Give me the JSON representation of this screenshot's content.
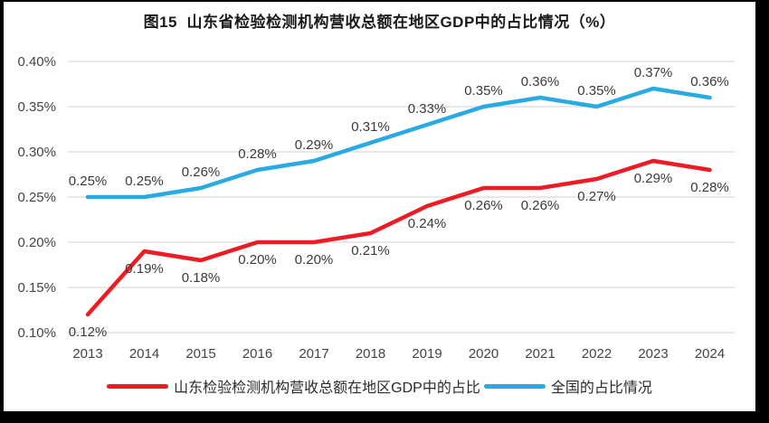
{
  "page": {
    "frame_color": "#000000",
    "background_color": "#ffffff"
  },
  "chart_data": {
    "type": "line",
    "title": "图15  山东省检验检测机构营收总额在地区GDP中的占比情况（%）",
    "xlabel": "",
    "ylabel": "",
    "categories": [
      "2013",
      "2014",
      "2015",
      "2016",
      "2017",
      "2018",
      "2019",
      "2020",
      "2021",
      "2022",
      "2023",
      "2024"
    ],
    "y_ticks": [
      {
        "label": "0.10%",
        "value": 0.1
      },
      {
        "label": "0.15%",
        "value": 0.15
      },
      {
        "label": "0.20%",
        "value": 0.2
      },
      {
        "label": "0.25%",
        "value": 0.25
      },
      {
        "label": "0.30%",
        "value": 0.3
      },
      {
        "label": "0.35%",
        "value": 0.35
      },
      {
        "label": "0.40%",
        "value": 0.4
      }
    ],
    "ylim": [
      0.1,
      0.4
    ],
    "grid": "horizontal",
    "grid_color": "#d9d9d9",
    "text_color": "#444444",
    "legend_position": "bottom",
    "series": [
      {
        "name": "山东检验检测机构营收总额在地区GDP中的占比",
        "color": "#ed1c24",
        "label_side": "below",
        "values": [
          0.12,
          0.19,
          0.18,
          0.2,
          0.2,
          0.21,
          0.24,
          0.26,
          0.26,
          0.27,
          0.29,
          0.28
        ],
        "labels": [
          "0.12%",
          "0.19%",
          "0.18%",
          "0.20%",
          "0.20%",
          "0.21%",
          "0.24%",
          "0.26%",
          "0.26%",
          "0.27%",
          "0.29%",
          "0.28%"
        ]
      },
      {
        "name": "全国的占比情况",
        "color": "#29abe2",
        "label_side": "above",
        "values": [
          0.25,
          0.25,
          0.26,
          0.28,
          0.29,
          0.31,
          0.33,
          0.35,
          0.36,
          0.35,
          0.37,
          0.36
        ],
        "labels": [
          "0.25%",
          "0.25%",
          "0.26%",
          "0.28%",
          "0.29%",
          "0.31%",
          "0.33%",
          "0.35%",
          "0.36%",
          "0.35%",
          "0.37%",
          "0.36%"
        ]
      }
    ]
  }
}
